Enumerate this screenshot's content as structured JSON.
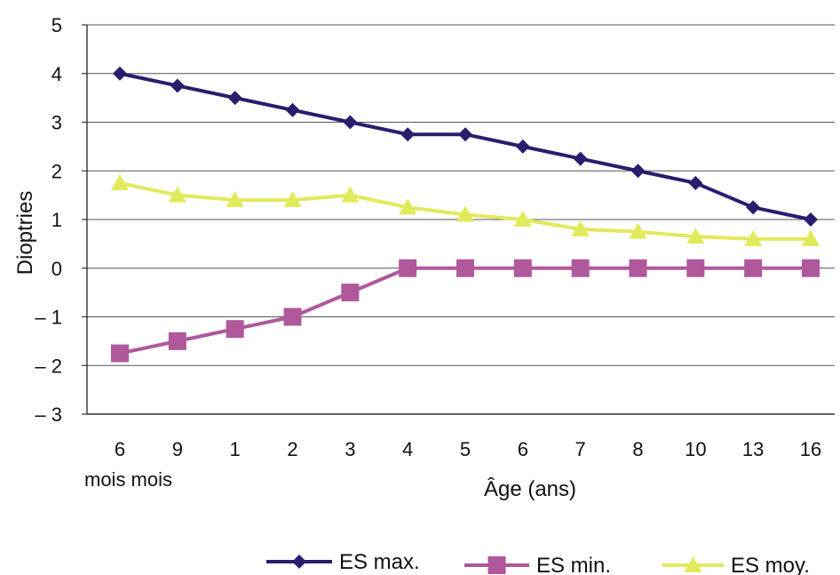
{
  "chart_data": {
    "type": "line",
    "title": "",
    "xlabel": "Âge (ans)",
    "ylabel": "Dioptries",
    "categories": [
      "6",
      "9",
      "1",
      "2",
      "3",
      "4",
      "5",
      "6",
      "7",
      "8",
      "10",
      "13",
      "16"
    ],
    "category_sublabel": "mois mois",
    "y_ticks": [
      "5",
      "4",
      "3",
      "2",
      "1",
      "0",
      "– 1",
      "– 2",
      "– 3"
    ],
    "ylim": [
      -3,
      5
    ],
    "grid": true,
    "legend_position": "bottom-right",
    "series": [
      {
        "name": "ES max.",
        "color": "#2a1d6e",
        "marker": "diamond",
        "values": [
          4.0,
          3.75,
          3.5,
          3.25,
          3.0,
          2.75,
          2.75,
          2.5,
          2.25,
          2.0,
          1.75,
          1.25,
          1.0
        ]
      },
      {
        "name": "ES min.",
        "color": "#b0589c",
        "marker": "square",
        "values": [
          -1.75,
          -1.5,
          -1.25,
          -1.0,
          -0.5,
          0,
          0,
          0,
          0,
          0,
          0,
          0,
          0
        ]
      },
      {
        "name": "ES moy.",
        "color": "#e1ea5a",
        "marker": "triangle",
        "values": [
          1.75,
          1.5,
          1.4,
          1.4,
          1.5,
          1.25,
          1.1,
          1.0,
          0.8,
          0.75,
          0.65,
          0.6,
          0.6
        ]
      }
    ]
  }
}
